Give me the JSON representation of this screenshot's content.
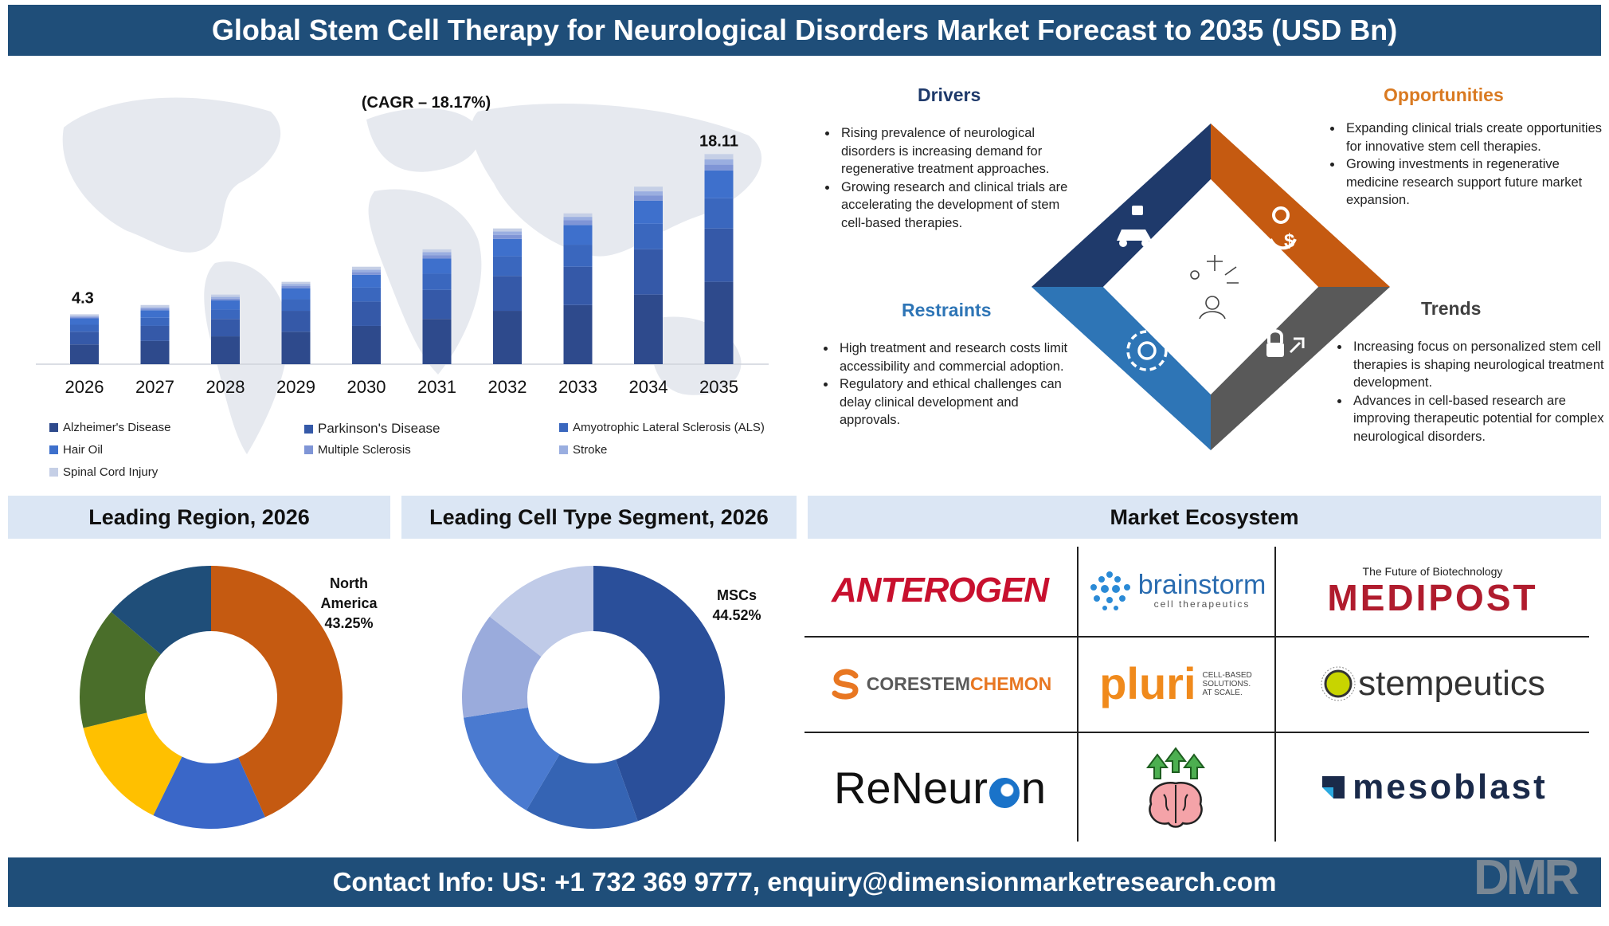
{
  "header": {
    "title": "Global Stem Cell Therapy for Neurological Disorders  Market Forecast to 2035 (USD Bn)"
  },
  "bar_chart": {
    "cagr_label": "(CAGR – 18.17%)",
    "first_label": "4.3",
    "last_label": "18.11"
  },
  "chart_data": [
    {
      "type": "bar",
      "stacked": true,
      "categories": [
        "2026",
        "2027",
        "2028",
        "2029",
        "2030",
        "2031",
        "2032",
        "2033",
        "2034",
        "2035"
      ],
      "totals": [
        4.3,
        5.1,
        6.0,
        7.1,
        8.4,
        9.9,
        11.7,
        13.0,
        15.3,
        18.11
      ],
      "series": [
        {
          "name": "Alzheimer's Disease",
          "values": [
            1.7,
            2.0,
            2.4,
            2.8,
            3.3,
            3.9,
            4.6,
            5.1,
            6.0,
            7.1
          ],
          "color": "#2e4a8c"
        },
        {
          "name": "Parkinson's Disease",
          "values": [
            1.1,
            1.3,
            1.5,
            1.8,
            2.1,
            2.5,
            3.0,
            3.3,
            3.9,
            4.6
          ],
          "color": "#3559a8"
        },
        {
          "name": "Amyotrophic Lateral Sclerosis (ALS)",
          "values": [
            0.6,
            0.7,
            0.8,
            1.0,
            1.2,
            1.4,
            1.7,
            1.9,
            2.2,
            2.6
          ],
          "color": "#3a67be"
        },
        {
          "name": "Hair Oil",
          "values": [
            0.55,
            0.65,
            0.8,
            0.95,
            1.1,
            1.3,
            1.5,
            1.7,
            2.0,
            2.4
          ],
          "color": "#3e70cc"
        },
        {
          "name": "Multiple Sclerosis",
          "values": [
            0.1,
            0.15,
            0.15,
            0.2,
            0.25,
            0.3,
            0.35,
            0.4,
            0.45,
            0.5
          ],
          "color": "#7f95d6"
        },
        {
          "name": "Stroke",
          "values": [
            0.1,
            0.1,
            0.15,
            0.15,
            0.2,
            0.25,
            0.3,
            0.3,
            0.35,
            0.45
          ],
          "color": "#9aaee0"
        },
        {
          "name": "Spinal Cord Injury",
          "values": [
            0.15,
            0.2,
            0.2,
            0.2,
            0.25,
            0.25,
            0.25,
            0.3,
            0.4,
            0.46
          ],
          "color": "#c5cfe6"
        }
      ],
      "ylim": [
        0,
        25
      ]
    },
    {
      "type": "pie",
      "title": "Leading Region, 2026",
      "label": "North America",
      "value_label": "43.25%",
      "values": [
        43.25,
        14.0,
        14.0,
        15.0,
        13.75
      ],
      "colors": [
        "#c55a11",
        "#3a67c8",
        "#ffc000",
        "#4a6e2a",
        "#1f4e79"
      ]
    },
    {
      "type": "pie",
      "title": "Leading Cell Type Segment, 2026",
      "label": "MSCs",
      "value_label": "44.52%",
      "values": [
        44.52,
        14.0,
        14.0,
        13.0,
        14.48
      ],
      "colors": [
        "#2a4f9a",
        "#3564b4",
        "#4a7ad0",
        "#9aabdc",
        "#c0cbe8"
      ]
    }
  ],
  "drivers": {
    "title": "Drivers",
    "items": [
      "Rising prevalence of neurological disorders is increasing demand for regenerative treatment approaches.",
      "Growing research and clinical trials are accelerating the development of stem cell-based therapies."
    ]
  },
  "opportunities": {
    "title": "Opportunities",
    "items": [
      "Expanding clinical trials create opportunities for innovative stem cell therapies.",
      "Growing investments in regenerative medicine research support future market expansion."
    ]
  },
  "restraints": {
    "title": "Restraints",
    "items": [
      "High treatment and research costs limit accessibility and commercial adoption.",
      "Regulatory and ethical challenges can delay clinical development and approvals."
    ]
  },
  "trends": {
    "title": "Trends",
    "items": [
      "Increasing focus on personalized stem cell therapies is shaping neurological treatment development.",
      "Advances in cell-based research are improving therapeutic potential for complex neurological disorders."
    ]
  },
  "diamond_colors": {
    "top_left": "#1f3a6b",
    "top_right": "#c55a11",
    "bottom_left": "#2e75b6",
    "bottom_right": "#595959"
  },
  "sections": {
    "region": "Leading Region, 2026",
    "cell_type": "Leading Cell Type Segment, 2026",
    "ecosystem": "Market Ecosystem"
  },
  "ecosystem": {
    "anterogen": "ANTEROGEN",
    "brainstorm_main": "brainstorm",
    "brainstorm_sub": "cell therapeutics",
    "medipost_tagline": "The Future of Biotechnology",
    "medipost": "MEDIPOST",
    "corestem_a": "CORESTEM",
    "corestem_b": "CHEMON",
    "pluri": "pluri",
    "pluri_sub1": "CELL-BASED",
    "pluri_sub2": "SOLUTIONS.",
    "pluri_sub3": "AT SCALE.",
    "stempeutics": "stempeutics",
    "reneuron_a": "ReNeur",
    "reneuron_b": "n",
    "mesoblast": "mesoblast"
  },
  "footer": {
    "contact": "Contact Info: US: +1 732 369 9777, enquiry@dimensionmarketresearch.com"
  },
  "watermark": "DMR"
}
